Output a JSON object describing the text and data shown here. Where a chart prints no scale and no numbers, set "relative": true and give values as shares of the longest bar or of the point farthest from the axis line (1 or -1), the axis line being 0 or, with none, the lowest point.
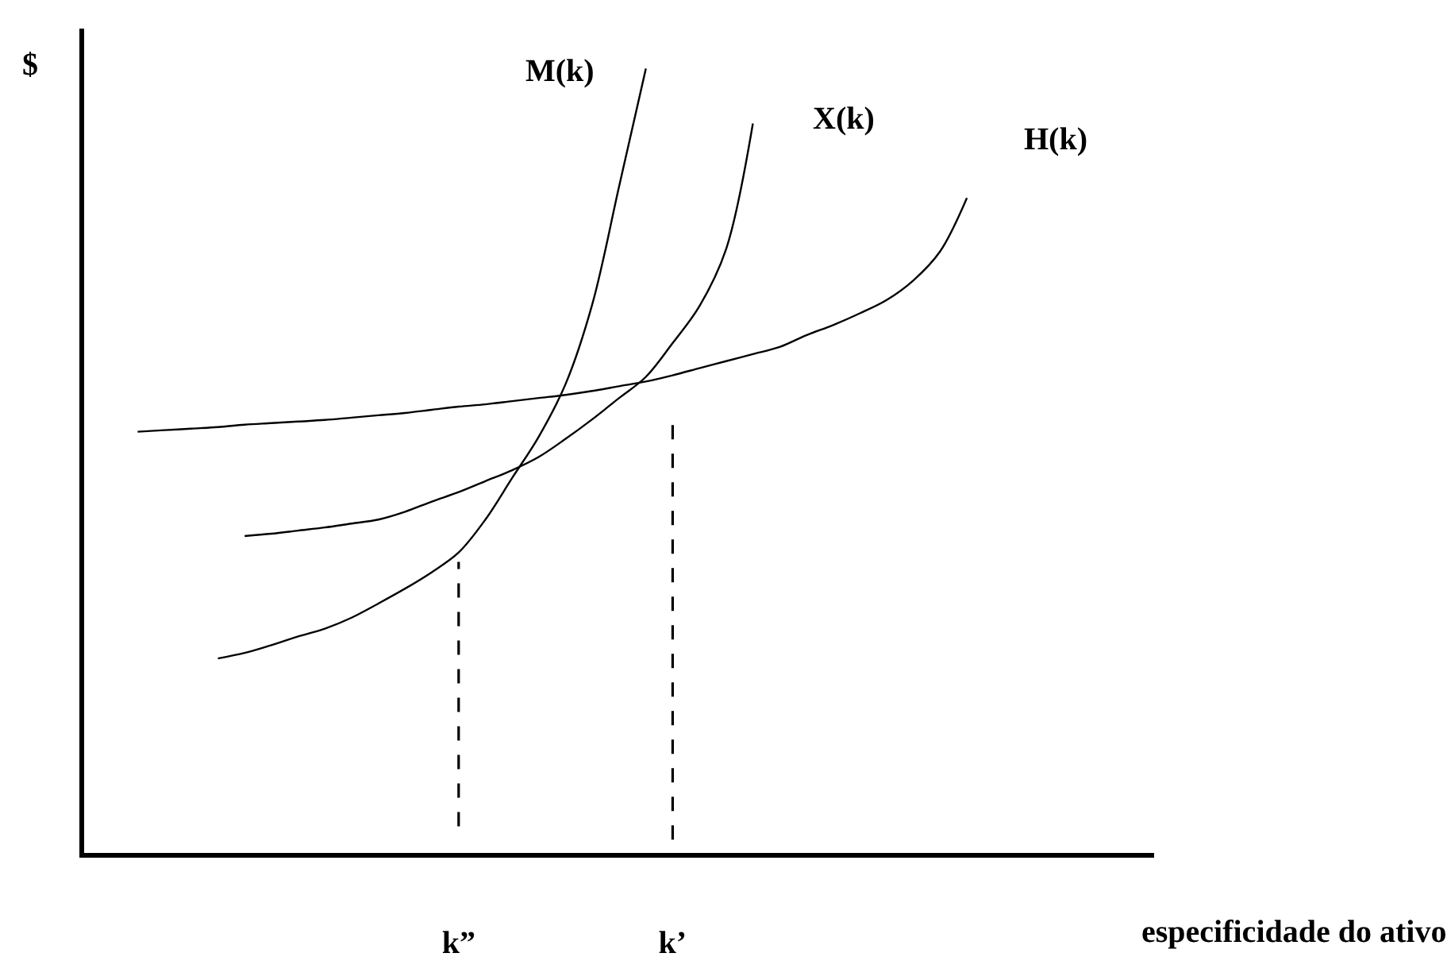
{
  "chart_data": {
    "type": "line",
    "relative": true,
    "xlabel": "especificidade do ativo",
    "ylabel": "$",
    "categories": [
      null,
      null,
      null,
      null,
      null,
      null,
      null,
      null,
      null,
      null,
      null,
      null,
      null,
      null,
      "k”",
      null,
      null,
      null,
      null,
      null,
      null,
      null,
      "k’",
      null,
      null,
      null,
      null,
      null,
      null,
      null,
      null,
      null,
      null,
      null,
      null,
      null,
      null,
      null,
      null,
      null,
      null
    ],
    "legend": false,
    "marker": "none",
    "line_style": "solid",
    "series": [
      {
        "name": "M(k)",
        "color": "#000000",
        "values": [
          null,
          null,
          null,
          null,
          null,
          0.248,
          0.255,
          0.265,
          0.276,
          0.286,
          0.3,
          0.318,
          0.337,
          0.358,
          0.383,
          0.425,
          0.478,
          0.531,
          0.598,
          0.7,
          0.85,
          1.0,
          null,
          null,
          null,
          null,
          null,
          null,
          null,
          null,
          null,
          null,
          null,
          null,
          null,
          null,
          null,
          null,
          null,
          null,
          null
        ]
      },
      {
        "name": "X(k)",
        "color": "#000000",
        "values": [
          null,
          null,
          null,
          null,
          null,
          null,
          0.404,
          0.407,
          0.411,
          0.415,
          0.42,
          0.425,
          0.435,
          0.448,
          0.46,
          0.474,
          0.488,
          0.505,
          0.528,
          0.553,
          0.58,
          0.607,
          0.65,
          0.697,
          0.77,
          0.93,
          null,
          null,
          null,
          null,
          null,
          null,
          null,
          null,
          null,
          null,
          null,
          null,
          null,
          null,
          null
        ]
      },
      {
        "name": "H(k)",
        "color": "#000000",
        "values": [
          null,
          null,
          0.537,
          0.539,
          0.541,
          0.543,
          0.546,
          0.548,
          0.55,
          0.552,
          0.555,
          0.558,
          0.561,
          0.565,
          0.569,
          0.572,
          0.576,
          0.58,
          0.584,
          0.589,
          0.595,
          0.601,
          0.609,
          0.618,
          0.627,
          0.636,
          0.645,
          0.66,
          0.673,
          0.688,
          0.705,
          0.73,
          0.767,
          0.835,
          null,
          null,
          null,
          null,
          null,
          null,
          null
        ]
      },
      {
        "color": "#000000",
        "line_style": "dashed",
        "x": [
          "k”",
          "k”"
        ],
        "values": [
          0.034,
          0.371
        ]
      },
      {
        "color": "#000000",
        "line_style": "dashed",
        "x": [
          "k’",
          "k’"
        ],
        "values": [
          0.017,
          0.549
        ]
      }
    ]
  }
}
